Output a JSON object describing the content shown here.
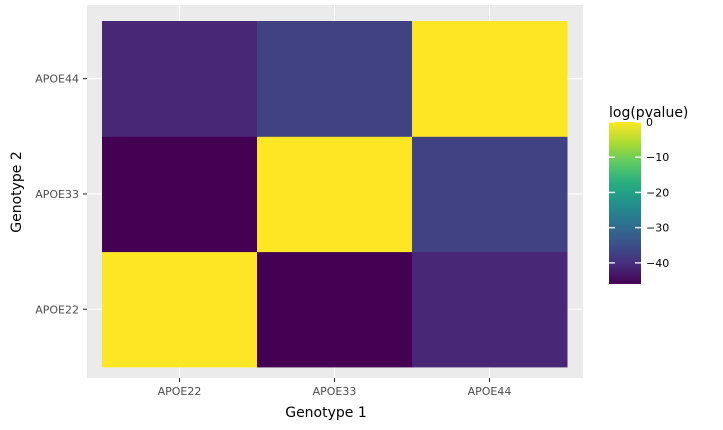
{
  "chart_data": {
    "type": "heatmap",
    "title": "",
    "xlabel": "Genotype 1",
    "ylabel": "Genotype 2",
    "x_categories": [
      "APOE22",
      "APOE33",
      "APOE44"
    ],
    "y_categories": [
      "APOE22",
      "APOE33",
      "APOE44"
    ],
    "cells": [
      {
        "x": "APOE22",
        "y": "APOE22",
        "value": 0
      },
      {
        "x": "APOE33",
        "y": "APOE22",
        "value": -46
      },
      {
        "x": "APOE44",
        "y": "APOE22",
        "value": -41
      },
      {
        "x": "APOE22",
        "y": "APOE33",
        "value": -46
      },
      {
        "x": "APOE33",
        "y": "APOE33",
        "value": 0
      },
      {
        "x": "APOE44",
        "y": "APOE33",
        "value": -37
      },
      {
        "x": "APOE22",
        "y": "APOE44",
        "value": -41
      },
      {
        "x": "APOE33",
        "y": "APOE44",
        "value": -37
      },
      {
        "x": "APOE44",
        "y": "APOE44",
        "value": 0
      }
    ],
    "legend": {
      "title": "log(pvalue)",
      "placement": "right",
      "ticks": [
        0,
        -10,
        -20,
        -30,
        -40
      ],
      "range": [
        -46,
        0
      ],
      "colormap": "viridis"
    },
    "background_color": "#ebebeb",
    "grid": true
  }
}
